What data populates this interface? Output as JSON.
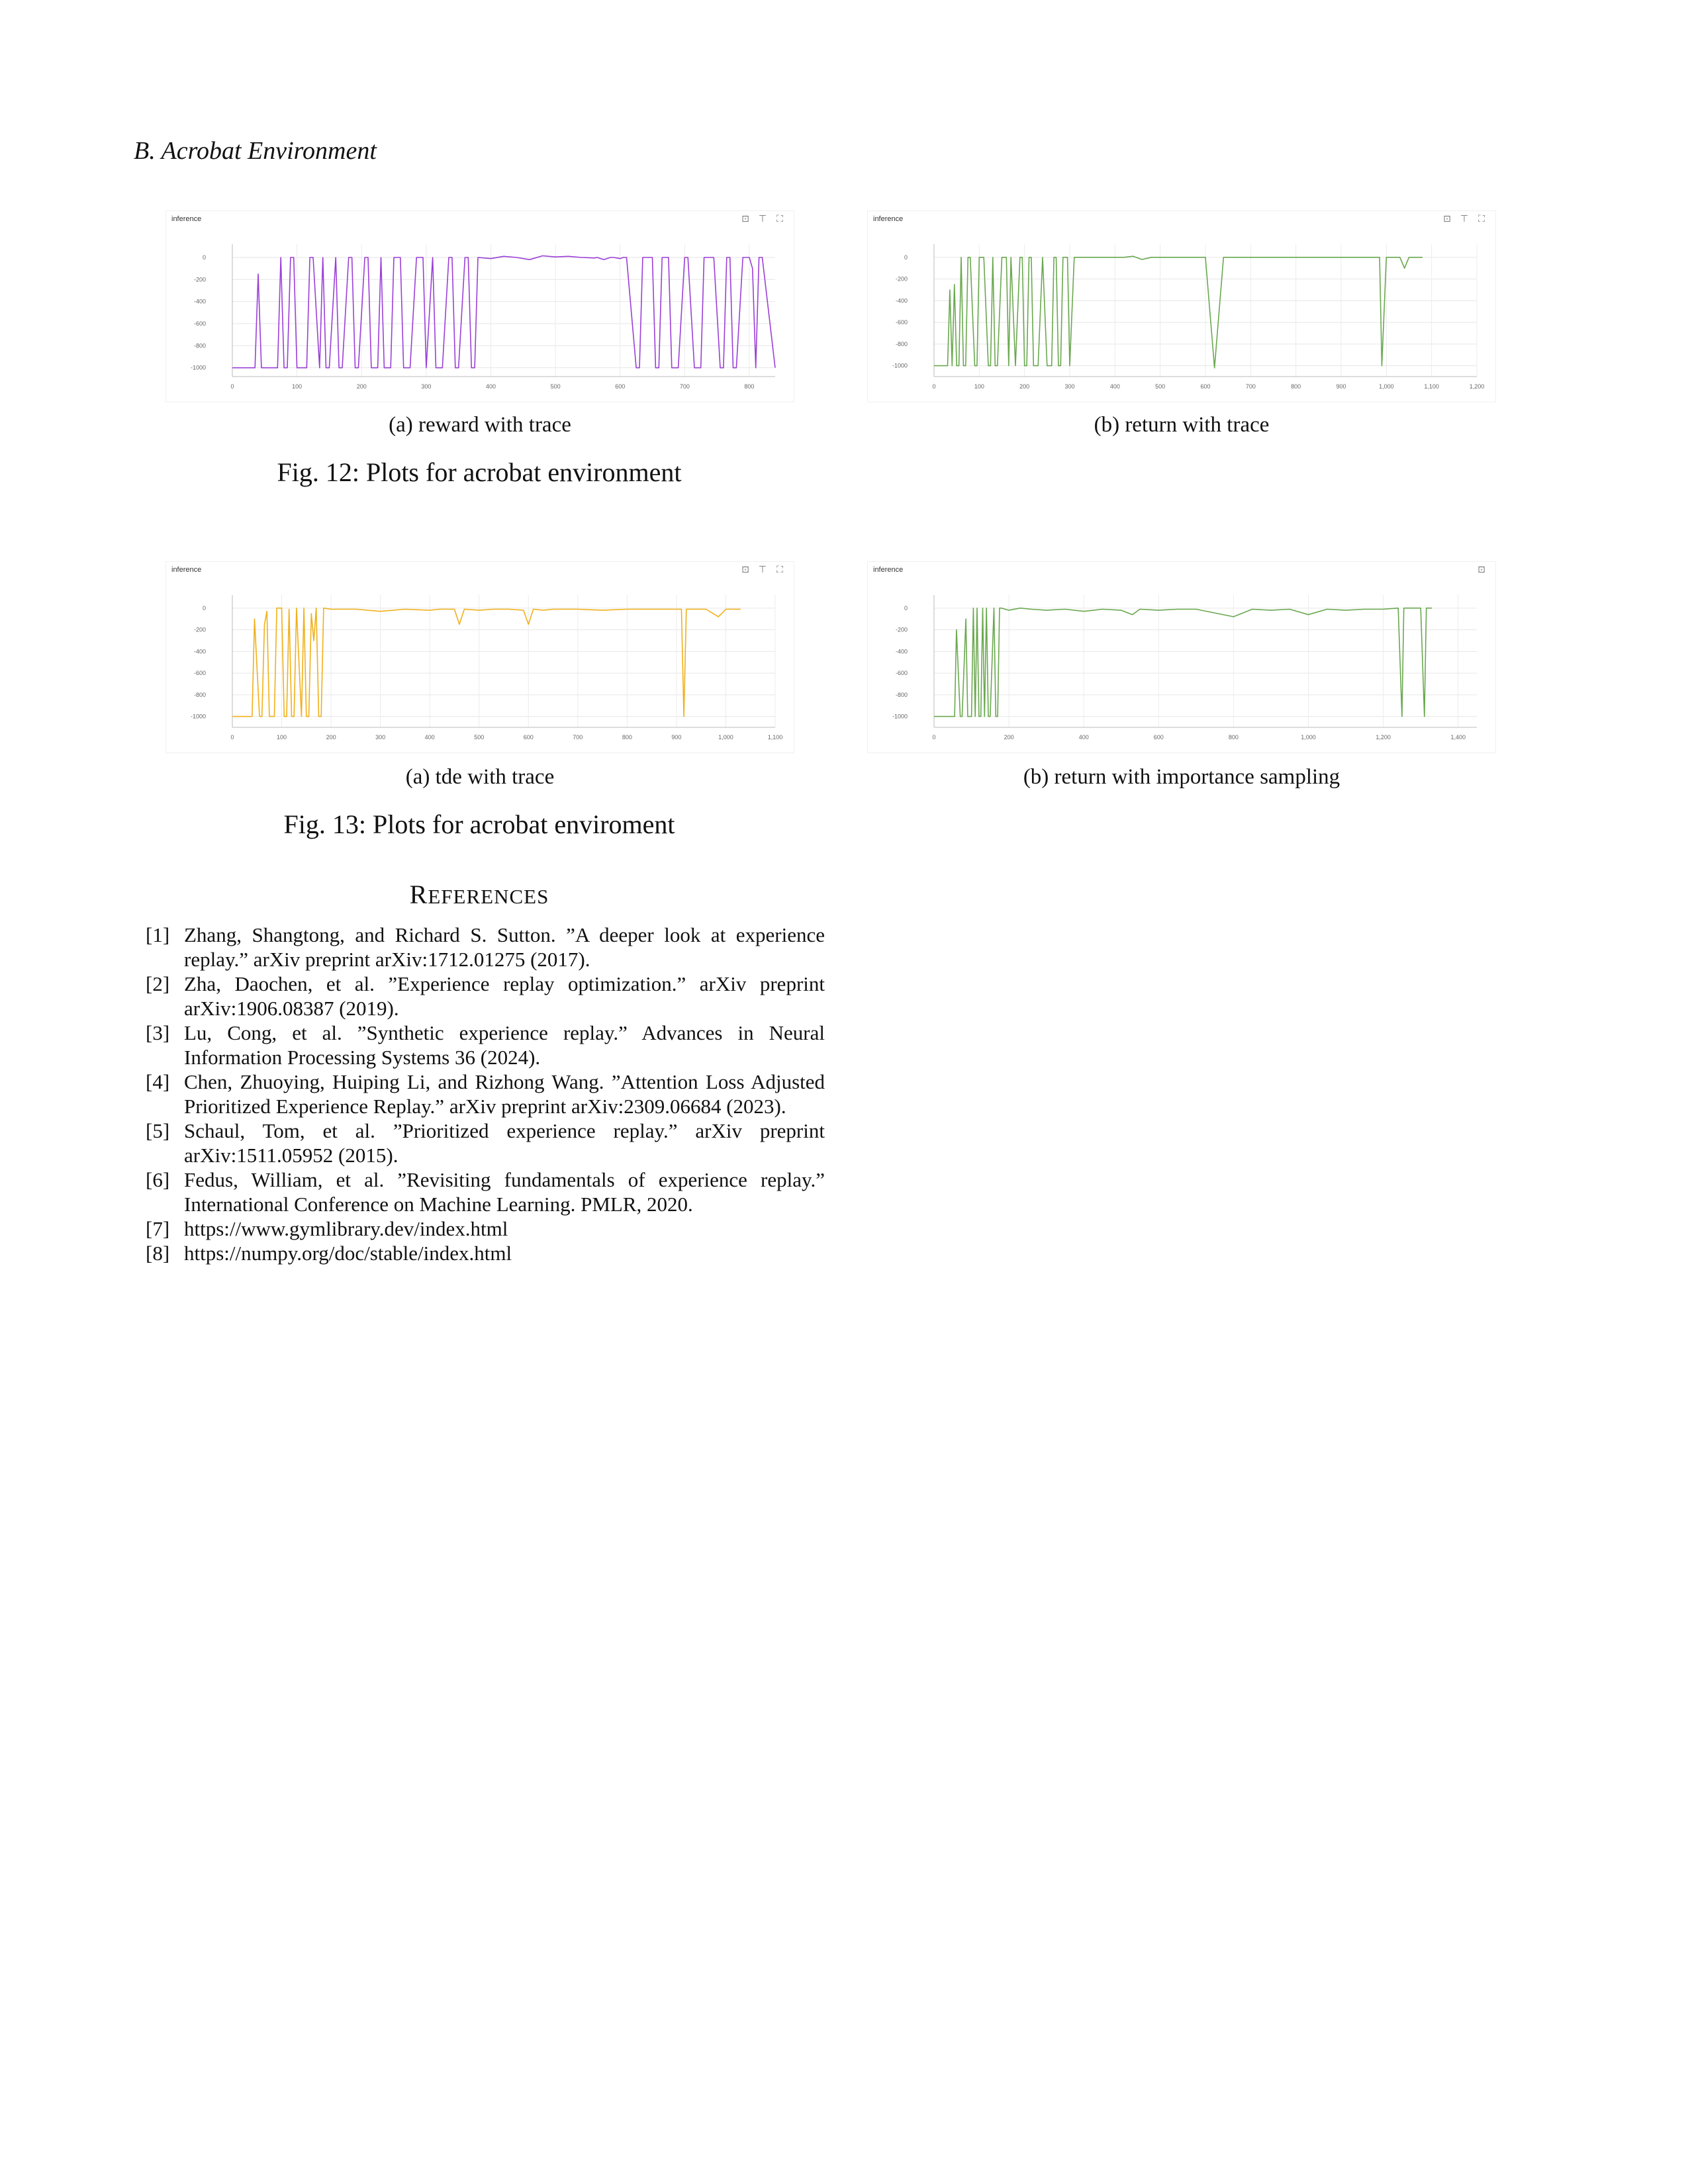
{
  "section_heading": "B.  Acrobat Environment",
  "icons": {
    "download": "image-download-icon",
    "pin": "pin-icon",
    "expand": "expand-icon"
  },
  "figure12": {
    "caption": "Fig. 12: Plots for acrobat environment",
    "panels": [
      {
        "sublabel": "(a) reward with trace",
        "title": "inference",
        "color": "#9b3fd6"
      },
      {
        "sublabel": "(b) return with trace",
        "title": "inference",
        "color": "#6aa84f"
      }
    ]
  },
  "figure13": {
    "caption": "Fig. 13: Plots for acrobat enviroment",
    "panels": [
      {
        "sublabel": "(a) tde with trace",
        "title": "inference",
        "color": "#f0b01a"
      },
      {
        "sublabel": "(b) return with importance sampling",
        "title": "inference",
        "color": "#6aa84f"
      }
    ]
  },
  "chart_data": [
    {
      "type": "line",
      "title": "inference",
      "x_ticks": [
        "0",
        "100",
        "200",
        "300",
        "400",
        "500",
        "600",
        "700",
        "800"
      ],
      "y_ticks": [
        "0",
        "-200",
        "-400",
        "-600",
        "-800",
        "-1000"
      ],
      "xlim": [
        0,
        840
      ],
      "ylim": [
        -1080,
        60
      ],
      "x": [
        0,
        35,
        40,
        45,
        50,
        60,
        70,
        75,
        80,
        85,
        90,
        95,
        100,
        110,
        115,
        120,
        125,
        135,
        140,
        145,
        150,
        160,
        165,
        170,
        180,
        185,
        190,
        195,
        205,
        210,
        215,
        220,
        225,
        230,
        235,
        245,
        250,
        260,
        265,
        270,
        275,
        285,
        290,
        295,
        300,
        310,
        315,
        320,
        325,
        335,
        340,
        345,
        350,
        360,
        365,
        370,
        375,
        380,
        400,
        420,
        440,
        460,
        480,
        500,
        520,
        540,
        560,
        565,
        570,
        575,
        585,
        590,
        600,
        605,
        610,
        625,
        630,
        635,
        650,
        655,
        660,
        665,
        675,
        680,
        685,
        690,
        700,
        705,
        715,
        720,
        725,
        730,
        740,
        745,
        755,
        760,
        765,
        770,
        775,
        780,
        790,
        800,
        805,
        810,
        815,
        820,
        840
      ],
      "y": [
        -1000,
        -1000,
        -150,
        -1000,
        -1000,
        -1000,
        -1000,
        0,
        -1000,
        -1000,
        0,
        0,
        -1000,
        -1000,
        -1000,
        0,
        0,
        -1000,
        0,
        -1000,
        -1000,
        0,
        -1000,
        -1000,
        0,
        0,
        -1000,
        -1000,
        0,
        0,
        -1000,
        -1000,
        -1000,
        0,
        -1000,
        -1000,
        0,
        0,
        -1000,
        -1000,
        -1000,
        0,
        0,
        0,
        -1000,
        0,
        -1000,
        -1000,
        -1000,
        0,
        0,
        -1000,
        -1000,
        0,
        0,
        -1000,
        -1000,
        0,
        -10,
        10,
        0,
        -20,
        15,
        5,
        10,
        0,
        -5,
        0,
        -10,
        -20,
        0,
        0,
        -10,
        0,
        0,
        -1000,
        -1000,
        0,
        0,
        -1000,
        -1000,
        0,
        0,
        -1000,
        -1000,
        -1000,
        0,
        0,
        -1000,
        -1000,
        -1000,
        0,
        0,
        0,
        -1000,
        -1000,
        0,
        0,
        -1000,
        -1000,
        0,
        0,
        -100,
        -1000,
        0,
        0,
        -1000
      ],
      "y_suffix_note": ""
    },
    {
      "type": "line",
      "title": "inference",
      "x_ticks": [
        "0",
        "100",
        "200",
        "300",
        "400",
        "500",
        "600",
        "700",
        "800",
        "900",
        "1,000",
        "1,100",
        "1,200"
      ],
      "y_ticks": [
        "0",
        "-200",
        "-400",
        "-600",
        "-800",
        "-1000"
      ],
      "xlim": [
        0,
        1200
      ],
      "ylim": [
        -1100,
        60
      ],
      "x": [
        0,
        10,
        30,
        35,
        40,
        45,
        50,
        55,
        60,
        65,
        70,
        75,
        80,
        90,
        95,
        100,
        105,
        110,
        120,
        125,
        130,
        135,
        140,
        150,
        160,
        165,
        170,
        180,
        190,
        195,
        200,
        205,
        210,
        215,
        220,
        230,
        240,
        250,
        260,
        265,
        270,
        275,
        280,
        285,
        290,
        295,
        300,
        310,
        320,
        340,
        360,
        380,
        400,
        420,
        440,
        460,
        480,
        500,
        560,
        600,
        620,
        640,
        660,
        680,
        700,
        740,
        780,
        820,
        860,
        900,
        940,
        960,
        980,
        985,
        990,
        1000,
        1010,
        1020,
        1030,
        1040,
        1050,
        1060,
        1080
      ],
      "y": [
        -1000,
        -1000,
        -1000,
        -300,
        -1000,
        -250,
        -1000,
        -1000,
        0,
        -1000,
        -1000,
        0,
        0,
        -1000,
        -1000,
        0,
        0,
        0,
        -1000,
        -1000,
        0,
        -1000,
        -1000,
        0,
        0,
        -1000,
        0,
        -1000,
        0,
        0,
        -1000,
        -1000,
        0,
        0,
        -1000,
        -1000,
        0,
        -1000,
        -1000,
        0,
        0,
        -1000,
        -1000,
        0,
        0,
        0,
        -1000,
        0,
        0,
        0,
        0,
        0,
        0,
        0,
        10,
        -20,
        0,
        0,
        0,
        0,
        -1020,
        0,
        0,
        0,
        0,
        0,
        0,
        0,
        0,
        0,
        0,
        0,
        0,
        0,
        -1000,
        0,
        0,
        0,
        0,
        -100,
        0,
        0,
        0
      ],
      "y_suffix_note": ""
    },
    {
      "type": "line",
      "title": "inference",
      "x_ticks": [
        "0",
        "100",
        "200",
        "300",
        "400",
        "500",
        "600",
        "700",
        "800",
        "900",
        "1,000",
        "1,100"
      ],
      "y_ticks": [
        "0",
        "-200",
        "-400",
        "-600",
        "-800",
        "-1000"
      ],
      "xlim": [
        0,
        1100
      ],
      "ylim": [
        -1100,
        60
      ],
      "x": [
        0,
        40,
        45,
        55,
        60,
        65,
        70,
        75,
        80,
        85,
        90,
        100,
        105,
        110,
        115,
        120,
        125,
        130,
        140,
        145,
        150,
        155,
        160,
        165,
        170,
        175,
        180,
        185,
        200,
        250,
        300,
        350,
        400,
        420,
        450,
        460,
        470,
        500,
        530,
        560,
        590,
        600,
        610,
        630,
        650,
        700,
        750,
        800,
        850,
        900,
        910,
        915,
        920,
        925,
        930,
        960,
        985,
        1000,
        1030
      ],
      "y": [
        -1000,
        -1000,
        -100,
        -1000,
        -1000,
        -150,
        -30,
        -1000,
        -1000,
        -1000,
        0,
        0,
        -1000,
        -1000,
        -10,
        -1000,
        -1000,
        0,
        -1000,
        0,
        -1000,
        -1000,
        -50,
        -300,
        0,
        -1000,
        -1000,
        0,
        -10,
        -10,
        -30,
        -10,
        -20,
        -10,
        -10,
        -150,
        -10,
        -20,
        -10,
        -10,
        -20,
        -150,
        -10,
        -20,
        -10,
        -10,
        -20,
        -10,
        -10,
        -10,
        -10,
        -1000,
        -10,
        -10,
        -10,
        -10,
        -80,
        -10,
        -10
      ],
      "y_suffix_note": ""
    },
    {
      "type": "line",
      "title": "inference",
      "x_ticks": [
        "0",
        "200",
        "400",
        "600",
        "800",
        "1,000",
        "1,200",
        "1,400"
      ],
      "y_ticks": [
        "0",
        "-200",
        "-400",
        "-600",
        "-800",
        "-1000"
      ],
      "xlim": [
        0,
        1450
      ],
      "ylim": [
        -1100,
        60
      ],
      "x": [
        0,
        50,
        55,
        60,
        70,
        75,
        85,
        90,
        100,
        105,
        110,
        115,
        120,
        125,
        130,
        135,
        140,
        145,
        150,
        160,
        165,
        170,
        175,
        180,
        190,
        200,
        230,
        260,
        300,
        350,
        400,
        450,
        500,
        530,
        550,
        600,
        650,
        700,
        800,
        850,
        900,
        950,
        1000,
        1050,
        1100,
        1150,
        1200,
        1240,
        1250,
        1255,
        1260,
        1270,
        1300,
        1310,
        1315,
        1320,
        1330
      ],
      "y": [
        -1000,
        -1000,
        -1000,
        -200,
        -1000,
        -1000,
        -100,
        -1000,
        -1000,
        0,
        -1000,
        0,
        -1000,
        -1000,
        0,
        -1000,
        0,
        -1000,
        -1000,
        0,
        -1000,
        -1000,
        0,
        0,
        -10,
        -20,
        0,
        -10,
        -20,
        -10,
        -30,
        -10,
        -20,
        -60,
        -10,
        -20,
        -10,
        -10,
        -80,
        -10,
        -20,
        -10,
        -60,
        -10,
        -20,
        -10,
        -10,
        0,
        -1000,
        0,
        0,
        0,
        0,
        -1000,
        0,
        0,
        0
      ],
      "y_suffix_note": ""
    }
  ],
  "references": {
    "title_big": "R",
    "title_small": "EFERENCES",
    "items": [
      {
        "num": "[1]",
        "text": "Zhang, Shangtong, and Richard S. Sutton. ”A deeper look at experience replay.” arXiv preprint arXiv:1712.01275 (2017)."
      },
      {
        "num": "[2]",
        "text": "Zha, Daochen, et al. ”Experience replay optimization.” arXiv preprint arXiv:1906.08387 (2019)."
      },
      {
        "num": "[3]",
        "text": "Lu, Cong, et al. ”Synthetic experience replay.” Advances in Neural Information Processing Systems 36 (2024)."
      },
      {
        "num": "[4]",
        "text": "Chen, Zhuoying, Huiping Li, and Rizhong Wang. ”Attention Loss Adjusted Prioritized Experience Replay.” arXiv preprint arXiv:2309.06684 (2023)."
      },
      {
        "num": "[5]",
        "text": "Schaul, Tom, et al. ”Prioritized experience replay.” arXiv preprint arXiv:1511.05952 (2015)."
      },
      {
        "num": "[6]",
        "text": "Fedus, William, et al. ”Revisiting fundamentals of experience replay.” International Conference on Machine Learning. PMLR, 2020."
      },
      {
        "num": "[7]",
        "text": "https://www.gymlibrary.dev/index.html"
      },
      {
        "num": "[8]",
        "text": "https://numpy.org/doc/stable/index.html"
      }
    ]
  }
}
